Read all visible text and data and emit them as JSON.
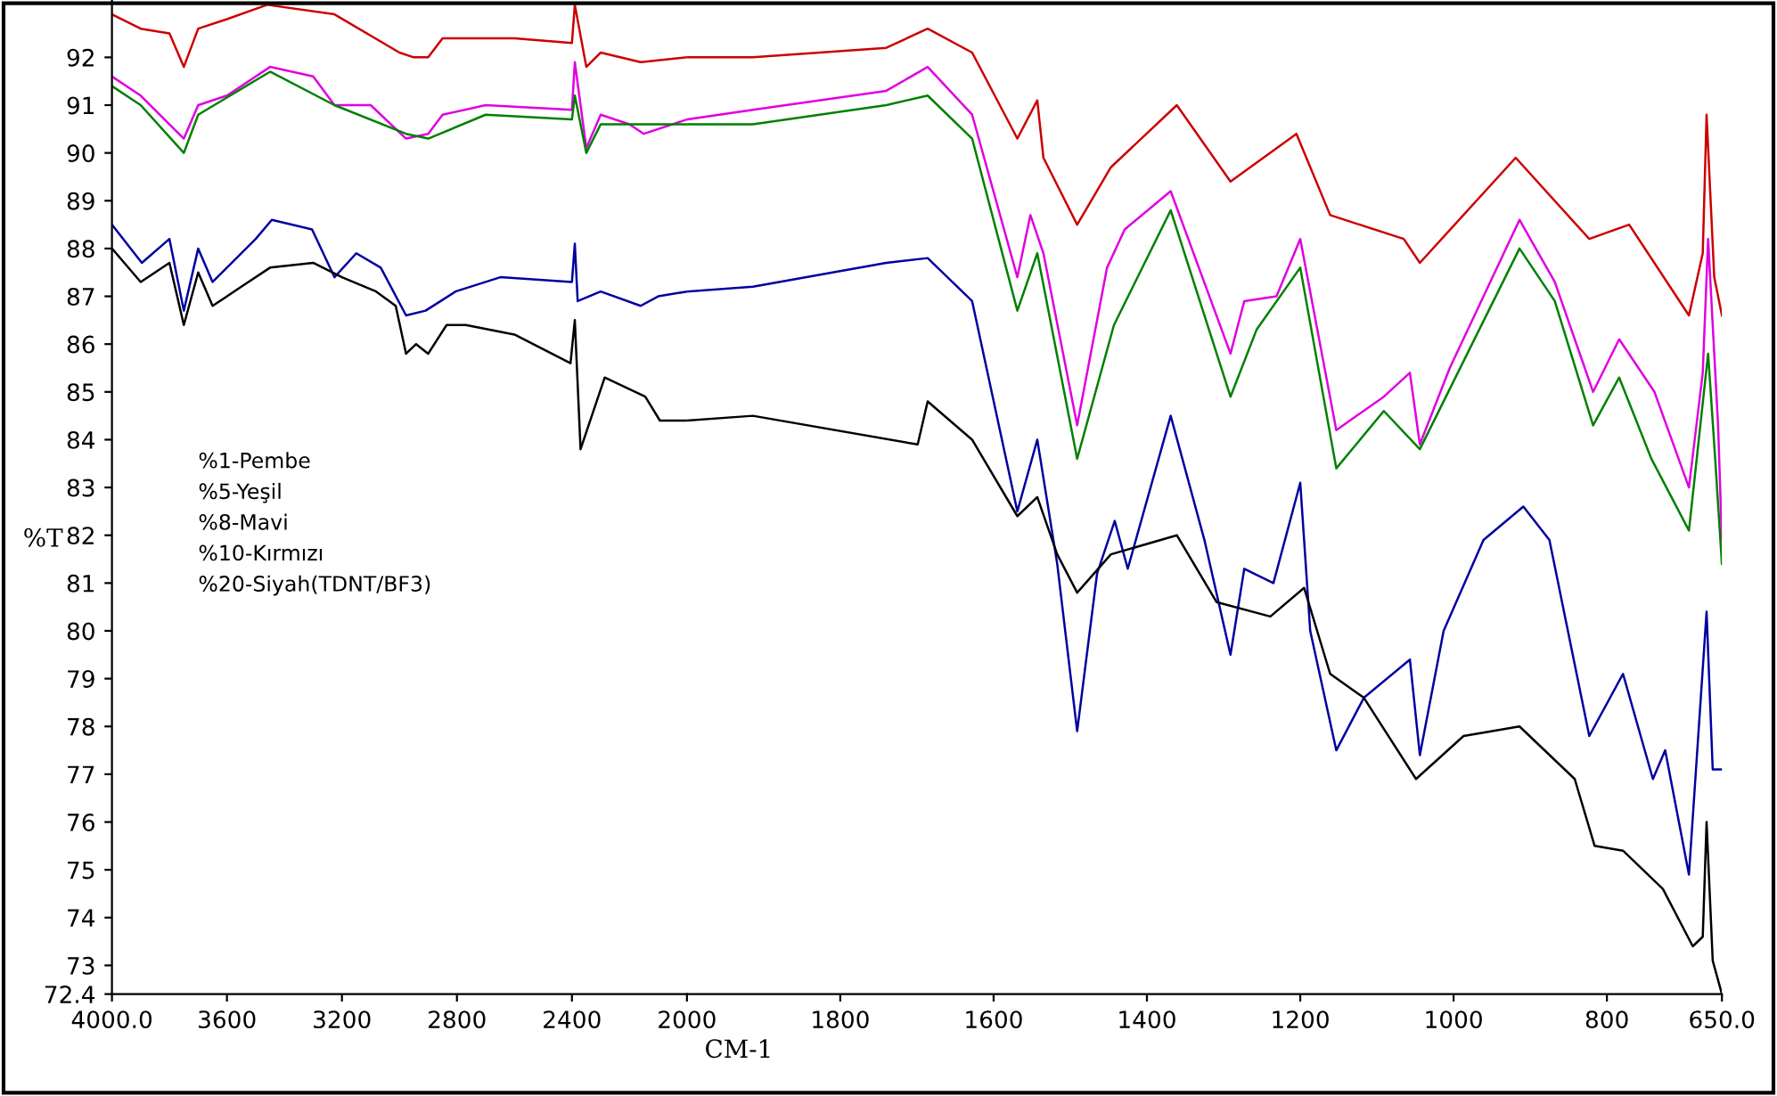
{
  "chart_data": [
    {
      "type": "line",
      "ylabel": "%T",
      "annotations": [
        "%1-Pembe",
        "%5-Yeşil",
        "%8-Mavi",
        "%10-Kırmızı",
        "%20-Siyah(TDNT/BF3)"
      ],
      "xlim": [
        4000,
        2000
      ],
      "ylim": [
        72.4,
        93.2
      ],
      "xticks": [
        {
          "value": 4000,
          "label": "4000.0"
        },
        3600,
        3200,
        2800,
        2400,
        2000
      ],
      "yticks": [
        72.4,
        73,
        74,
        75,
        76,
        77,
        78,
        79,
        80,
        81,
        82,
        83,
        84,
        85,
        86,
        87,
        88,
        89,
        90,
        91,
        92
      ],
      "grid": false,
      "legend": false,
      "marker": "none",
      "line_style": "solid",
      "series": [
        {
          "color": "#cc0000",
          "x": [
            4000,
            3900,
            3800,
            3750,
            3700,
            3600,
            3460,
            3226,
            3000,
            2950,
            2900,
            2850,
            2600,
            2400,
            2390,
            2350,
            2300,
            2161,
            2000
          ],
          "values": [
            92.9,
            92.6,
            92.5,
            91.8,
            92.6,
            92.8,
            93.1,
            92.9,
            92.1,
            92.0,
            92.0,
            92.4,
            92.4,
            92.3,
            93.1,
            91.8,
            92.1,
            91.9,
            92.0
          ]
        },
        {
          "color": "#e000e0",
          "x": [
            4000,
            3900,
            3750,
            3700,
            3600,
            3450,
            3300,
            3226,
            3100,
            2977,
            2900,
            2850,
            2700,
            2400,
            2390,
            2350,
            2300,
            2200,
            2150,
            2000
          ],
          "values": [
            91.6,
            91.2,
            90.3,
            91.0,
            91.2,
            91.8,
            91.6,
            91.0,
            91.0,
            90.3,
            90.4,
            90.8,
            91.0,
            90.9,
            91.9,
            90.1,
            90.8,
            90.6,
            90.4,
            90.7
          ]
        },
        {
          "color": "#008000",
          "x": [
            4000,
            3900,
            3750,
            3700,
            3450,
            3226,
            2977,
            2900,
            2700,
            2400,
            2390,
            2350,
            2300,
            2000
          ],
          "values": [
            91.4,
            91.0,
            90.0,
            90.8,
            91.7,
            91.0,
            90.4,
            90.3,
            90.8,
            90.7,
            91.2,
            90.0,
            90.6,
            90.6
          ]
        },
        {
          "color": "#0000a0",
          "x": [
            4000,
            3896,
            3800,
            3750,
            3700,
            3650,
            3500,
            3444,
            3304,
            3226,
            3150,
            3065,
            2977,
            2909,
            2805,
            2649,
            2400,
            2390,
            2380,
            2300,
            2161,
            2100,
            2000
          ],
          "values": [
            88.5,
            87.7,
            88.2,
            86.7,
            88.0,
            87.3,
            88.2,
            88.6,
            88.4,
            87.4,
            87.9,
            87.6,
            86.6,
            86.7,
            87.1,
            87.4,
            87.3,
            88.1,
            86.9,
            87.1,
            86.8,
            87.0,
            87.1
          ]
        },
        {
          "color": "#000000",
          "x": [
            4000,
            3900,
            3800,
            3750,
            3700,
            3650,
            3550,
            3450,
            3300,
            3200,
            3081,
            3013,
            2977,
            2942,
            2900,
            2836,
            2769,
            2600,
            2405,
            2390,
            2370,
            2286,
            2145,
            2094,
            2000
          ],
          "values": [
            88.0,
            87.3,
            87.7,
            86.4,
            87.5,
            86.8,
            87.2,
            87.6,
            87.7,
            87.4,
            87.1,
            86.8,
            85.8,
            86.0,
            85.8,
            86.4,
            86.4,
            86.2,
            85.6,
            86.5,
            83.8,
            85.3,
            84.9,
            84.4,
            84.4
          ]
        }
      ]
    },
    {
      "type": "line",
      "xlabel": "CM-1",
      "tick_labels": "x",
      "xlim": [
        2000,
        650
      ],
      "ylim": [
        72.4,
        93.2
      ],
      "xticks": [
        1800,
        1600,
        1400,
        1200,
        1000,
        800,
        {
          "value": 650,
          "label": "650.0"
        }
      ],
      "grid": false,
      "legend": false,
      "marker": "none",
      "line_style": "solid",
      "series": [
        {
          "color": "#cc0000",
          "x": [
            2000,
            1914,
            1740,
            1686,
            1628,
            1569,
            1543,
            1535,
            1491,
            1447,
            1361,
            1291,
            1205,
            1161,
            1065,
            1044,
            919,
            823,
            771,
            693,
            675,
            670,
            660,
            650
          ],
          "values": [
            92.0,
            92.0,
            92.2,
            92.6,
            92.1,
            90.3,
            91.1,
            89.9,
            88.5,
            89.7,
            91.0,
            89.4,
            90.4,
            88.7,
            88.2,
            87.7,
            89.9,
            88.2,
            88.5,
            86.6,
            87.9,
            90.8,
            87.4,
            86.6
          ]
        },
        {
          "color": "#e000e0",
          "x": [
            2000,
            1914,
            1740,
            1686,
            1628,
            1569,
            1552,
            1535,
            1491,
            1452,
            1429,
            1369,
            1291,
            1273,
            1231,
            1200,
            1153,
            1091,
            1057,
            1044,
            1005,
            914,
            868,
            818,
            784,
            738,
            693,
            675,
            668,
            655,
            650
          ],
          "values": [
            90.7,
            90.9,
            91.3,
            91.8,
            90.8,
            87.4,
            88.7,
            87.9,
            84.3,
            87.6,
            88.4,
            89.2,
            85.8,
            86.9,
            87.0,
            88.2,
            84.2,
            84.9,
            85.4,
            83.9,
            85.5,
            88.6,
            87.3,
            85.0,
            86.1,
            85.0,
            83.0,
            85.4,
            88.2,
            84.3,
            81.9
          ]
        },
        {
          "color": "#008000",
          "x": [
            2000,
            1914,
            1740,
            1686,
            1628,
            1569,
            1543,
            1491,
            1443,
            1369,
            1291,
            1257,
            1200,
            1153,
            1091,
            1044,
            914,
            868,
            818,
            784,
            742,
            693,
            668,
            660,
            650
          ],
          "values": [
            90.6,
            90.6,
            91.0,
            91.2,
            90.3,
            86.7,
            87.9,
            83.6,
            86.4,
            88.8,
            84.9,
            86.3,
            87.6,
            83.4,
            84.6,
            83.8,
            88.0,
            86.9,
            84.3,
            85.3,
            83.6,
            82.1,
            85.8,
            83.9,
            81.4
          ]
        },
        {
          "color": "#0000a0",
          "x": [
            2000,
            1914,
            1740,
            1686,
            1628,
            1569,
            1543,
            1517,
            1491,
            1465,
            1442,
            1425,
            1369,
            1325,
            1291,
            1273,
            1235,
            1200,
            1187,
            1153,
            1117,
            1057,
            1044,
            1013,
            961,
            909,
            875,
            823,
            779,
            740,
            724,
            693,
            670,
            662,
            650
          ],
          "values": [
            87.1,
            87.2,
            87.7,
            87.8,
            86.9,
            82.5,
            84.0,
            81.4,
            77.9,
            81.2,
            82.3,
            81.3,
            84.5,
            81.9,
            79.5,
            81.3,
            81.0,
            83.1,
            80.0,
            77.5,
            78.6,
            79.4,
            77.4,
            80.0,
            81.9,
            82.6,
            81.9,
            77.8,
            79.1,
            76.9,
            77.5,
            74.9,
            80.4,
            77.1,
            77.1
          ]
        },
        {
          "color": "#000000",
          "x": [
            2000,
            1914,
            1699,
            1686,
            1628,
            1569,
            1543,
            1517,
            1491,
            1447,
            1361,
            1309,
            1239,
            1195,
            1161,
            1117,
            1049,
            987,
            914,
            842,
            816,
            779,
            727,
            688,
            675,
            670,
            662,
            650
          ],
          "values": [
            84.4,
            84.5,
            83.9,
            84.8,
            84.0,
            82.4,
            82.8,
            81.6,
            80.8,
            81.6,
            82.0,
            80.6,
            80.3,
            80.9,
            79.1,
            78.6,
            76.9,
            77.8,
            78.0,
            76.9,
            75.5,
            75.4,
            74.6,
            73.4,
            73.6,
            76.0,
            73.1,
            72.4
          ]
        }
      ]
    }
  ]
}
